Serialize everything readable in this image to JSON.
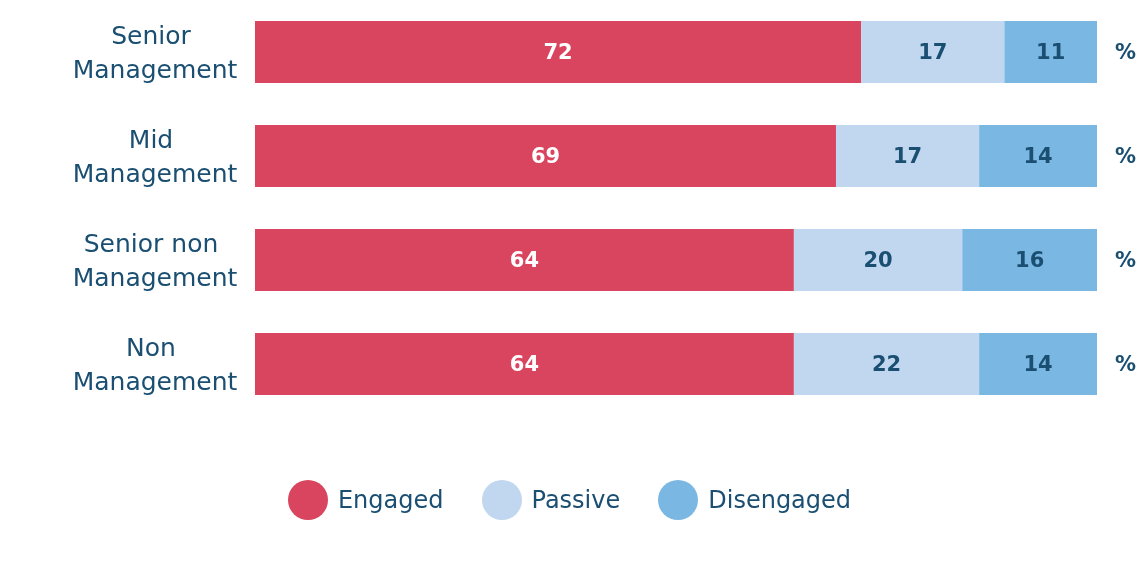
{
  "chart_data": {
    "type": "bar",
    "orientation": "horizontal",
    "stacked": true,
    "data_labels": true,
    "legend": "bottom",
    "categories": [
      "Senior Management",
      "Mid Management",
      "Senior non Management",
      "Non Management"
    ],
    "series": [
      {
        "name": "Engaged",
        "color": "#d9445f",
        "values": [
          72,
          69,
          64,
          64
        ]
      },
      {
        "name": "Passive",
        "color": "#c1d7f0",
        "values": [
          17,
          17,
          20,
          22
        ]
      },
      {
        "name": "Disengaged",
        "color": "#7bb7e3",
        "values": [
          11,
          14,
          16,
          14
        ]
      }
    ],
    "annotations": [
      "%",
      "%",
      "%",
      "%"
    ]
  }
}
